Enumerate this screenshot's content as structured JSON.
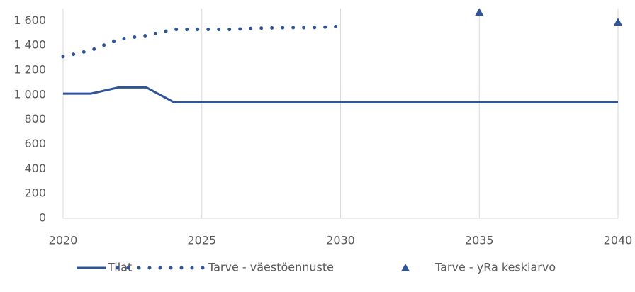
{
  "chart_data": {
    "type": "line",
    "x": [
      2020,
      2021,
      2022,
      2023,
      2024,
      2025,
      2026,
      2027,
      2028,
      2029,
      2030,
      2031,
      2032,
      2033,
      2034,
      2035,
      2036,
      2037,
      2038,
      2039,
      2040
    ],
    "series": [
      {
        "name": "Tilat",
        "color": "#2f5597",
        "style": "solid",
        "values": [
          1010,
          1010,
          1060,
          1060,
          940,
          940,
          940,
          940,
          940,
          940,
          940,
          940,
          940,
          940,
          940,
          940,
          940,
          940,
          940,
          940,
          940
        ]
      },
      {
        "name": "Tarve - väestöennuste",
        "color": "#2f5597",
        "style": "dotted",
        "values": [
          1310,
          1360,
          1450,
          1480,
          1530,
          1530,
          1530,
          1540,
          1545,
          1545,
          1555,
          null,
          null,
          null,
          null,
          null,
          null,
          null,
          null,
          null,
          null
        ]
      },
      {
        "name": "Tarve - yRa keskiarvo",
        "color": "#2f5597",
        "style": "marker",
        "values": [
          null,
          null,
          null,
          null,
          null,
          null,
          null,
          null,
          null,
          null,
          null,
          null,
          null,
          null,
          null,
          1670,
          null,
          null,
          null,
          null,
          1590
        ]
      }
    ],
    "xlim": [
      2020,
      2040
    ],
    "xticks": [
      2020,
      2025,
      2030,
      2035,
      2040
    ],
    "ylim": [
      0,
      1700
    ],
    "yticks": [
      0,
      200,
      400,
      600,
      800,
      {
        "value": 1000,
        "label": "1 000"
      },
      {
        "value": 1200,
        "label": "1 200"
      },
      {
        "value": 1400,
        "label": "1 400"
      },
      {
        "value": 1600,
        "label": "1 600"
      }
    ],
    "grid": "x",
    "legend": "bottom"
  }
}
